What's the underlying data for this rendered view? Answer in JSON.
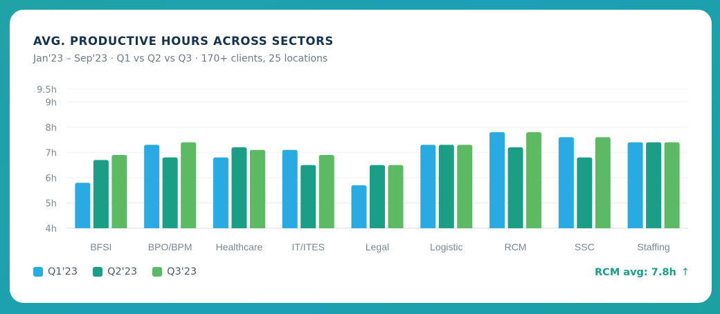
{
  "colors": {
    "q1": "#29abe2",
    "q2": "#1b9e86",
    "q3": "#5cba62",
    "grid": "#edf0f3",
    "axis_text": "#7a8796",
    "callout": "#1a9e86"
  },
  "card": {
    "title": "AVG. PRODUCTIVE HOURS ACROSS SECTORS",
    "subtitle": "Jan'23 – Sep'23  ·  Q1 vs Q2 vs Q3  ·  170+ clients, 25 locations"
  },
  "callout": {
    "text": "RCM avg: 7.8h",
    "arrow": "↑"
  },
  "chart_data": {
    "type": "bar",
    "title": "AVG. PRODUCTIVE HOURS ACROSS SECTORS",
    "subtitle": "Jan'23 – Sep'23  ·  Q1 vs Q2 vs Q3  ·  170+ clients, 25 locations",
    "xlabel": "",
    "ylabel": "",
    "ylim": [
      4,
      9.5
    ],
    "yticks": [
      4,
      5,
      6,
      7,
      8,
      9,
      9.5
    ],
    "ytick_labels": [
      "4h",
      "5h",
      "6h",
      "7h",
      "8h",
      "9h",
      "9.5h"
    ],
    "grid": true,
    "legend_position": "bottom-left",
    "categories": [
      "BFSI",
      "BPO/BPM",
      "Healthcare",
      "IT/ITES",
      "Legal",
      "Logistic",
      "RCM",
      "SSC",
      "Staffing"
    ],
    "series": [
      {
        "name": "Q1'23",
        "color": "#29abe2",
        "values": [
          5.8,
          7.3,
          6.8,
          7.1,
          5.7,
          7.3,
          7.8,
          7.6,
          7.4
        ]
      },
      {
        "name": "Q2'23",
        "color": "#1b9e86",
        "values": [
          6.7,
          6.8,
          7.2,
          6.5,
          6.5,
          7.3,
          7.2,
          6.8,
          7.4
        ]
      },
      {
        "name": "Q3'23",
        "color": "#5cba62",
        "values": [
          6.9,
          7.4,
          7.1,
          6.9,
          6.5,
          7.3,
          7.8,
          7.6,
          7.4
        ]
      }
    ]
  }
}
